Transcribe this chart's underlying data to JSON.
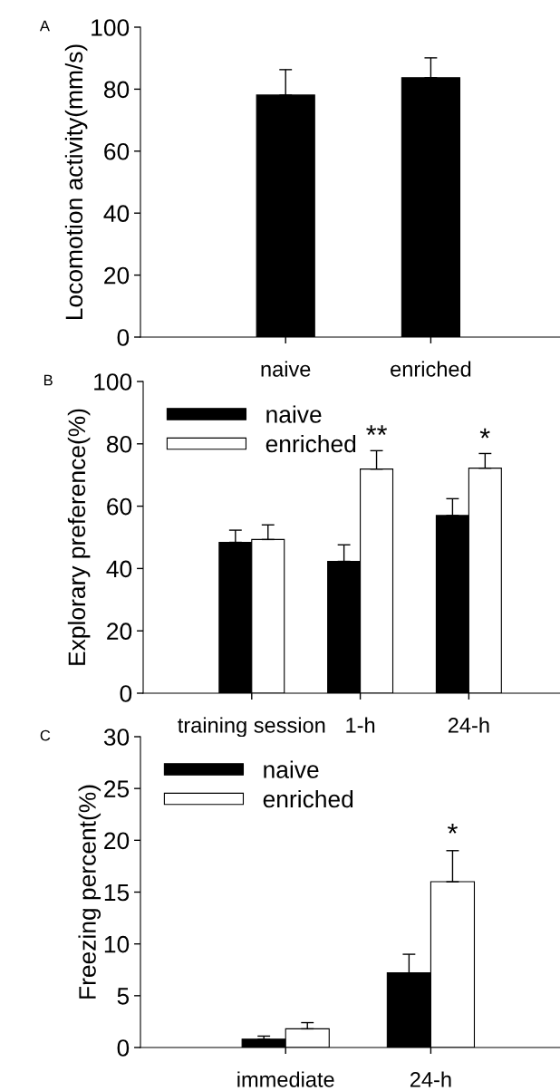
{
  "chart_data": [
    {
      "type": "bar",
      "title": "A",
      "ylabel": "Locomotion activity(mm/s)",
      "categories": [
        "naive",
        "enriched"
      ],
      "values": [
        78.1,
        83.7
      ],
      "color": "#000000",
      "errors": [
        [
          78.1,
          86.3
        ],
        [
          83.7,
          90.1
        ]
      ],
      "ylim": [
        0,
        100
      ],
      "yticks": [
        0,
        20,
        40,
        60,
        80,
        100
      ],
      "grid": false
    },
    {
      "type": "bar",
      "title": "B",
      "ylabel": "Explorary preference(%)",
      "categories": [
        "training session",
        "1-h",
        "24-h"
      ],
      "series": [
        {
          "name": "naive",
          "color": "#000000",
          "values": [
            48.4,
            42.3,
            57.0
          ],
          "errors": [
            [
              48.4,
              52.3
            ],
            [
              42.3,
              47.6
            ],
            [
              57.0,
              62.4
            ]
          ]
        },
        {
          "name": "enriched",
          "color": "#ffffff",
          "values": [
            49.3,
            71.9,
            72.2
          ],
          "errors": [
            [
              49.3,
              54.0
            ],
            [
              71.9,
              77.8
            ],
            [
              72.2,
              76.9
            ]
          ]
        }
      ],
      "annotations": [
        "**",
        "*"
      ],
      "ylim": [
        0,
        100
      ],
      "yticks": [
        0,
        20,
        40,
        60,
        80,
        100
      ],
      "legend": "top left",
      "grid": false
    },
    {
      "type": "bar",
      "title": "C",
      "ylabel": "Freezing percent(%)",
      "categories": [
        "immediate",
        "24-h"
      ],
      "series": [
        {
          "name": "naive",
          "color": "#000000",
          "values": [
            0.8,
            7.2
          ],
          "errors": [
            [
              0.8,
              1.1
            ],
            [
              7.2,
              9.0
            ]
          ]
        },
        {
          "name": "enriched",
          "color": "#ffffff",
          "values": [
            1.8,
            16.0
          ],
          "errors": [
            [
              1.8,
              2.4
            ],
            [
              16.0,
              19.0
            ]
          ]
        }
      ],
      "annotations": [
        "*"
      ],
      "ylim": [
        0,
        30
      ],
      "yticks": [
        0,
        5,
        10,
        15,
        20,
        25,
        30
      ],
      "legend": "top left",
      "grid": false
    }
  ]
}
